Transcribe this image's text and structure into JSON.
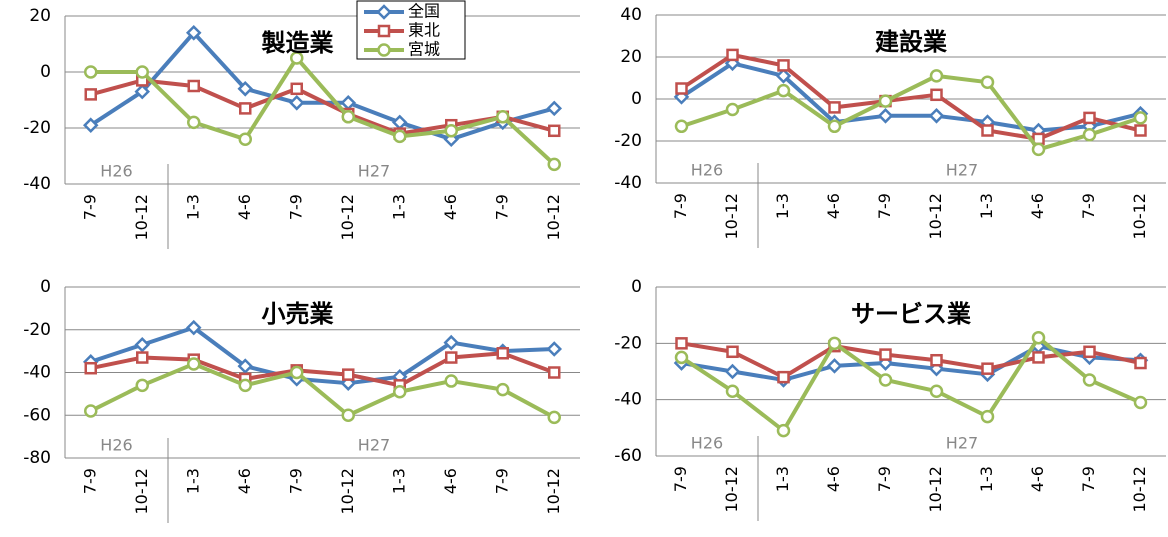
{
  "chart_data": [
    {
      "type": "line",
      "title": "製造業",
      "groups": [
        {
          "name": "H26",
          "categories": [
            "7-9",
            "10-12"
          ]
        },
        {
          "name": "H27",
          "categories": [
            "1-3",
            "4-6",
            "7-9",
            "10-12",
            "1-3",
            "4-6",
            "7-9",
            "10-12"
          ]
        }
      ],
      "ylim": [
        -40,
        20
      ],
      "yticks": [
        -40,
        -20,
        0,
        20
      ],
      "grid": true,
      "series": [
        {
          "name": "全国",
          "color": "#4a7ebb",
          "marker": "diamond",
          "values": [
            -19,
            -7,
            14,
            -6,
            -11,
            -11,
            -18,
            -24,
            -18,
            -13
          ]
        },
        {
          "name": "東北",
          "color": "#c0504d",
          "marker": "square",
          "values": [
            -8,
            -3,
            -5,
            -13,
            -6,
            -15,
            -22,
            -19,
            -16,
            -21
          ]
        },
        {
          "name": "宮城",
          "color": "#9bbb59",
          "marker": "circle",
          "values": [
            0,
            0,
            -18,
            -24,
            5,
            -16,
            -23,
            -21,
            -16,
            -33
          ]
        }
      ]
    },
    {
      "type": "line",
      "title": "建設業",
      "groups": [
        {
          "name": "H26",
          "categories": [
            "7-9",
            "10-12"
          ]
        },
        {
          "name": "H27",
          "categories": [
            "1-3",
            "4-6",
            "7-9",
            "10-12",
            "1-3",
            "4-6",
            "7-9",
            "10-12"
          ]
        }
      ],
      "ylim": [
        -40,
        40
      ],
      "yticks": [
        -40,
        -20,
        0,
        20,
        40
      ],
      "grid": true,
      "series": [
        {
          "values": [
            1,
            17,
            11,
            -11,
            -8,
            -8,
            -11,
            -15,
            -13,
            -7
          ]
        },
        {
          "values": [
            5,
            21,
            16,
            -4,
            -1,
            2,
            -15,
            -19,
            -9,
            -15
          ]
        },
        {
          "values": [
            -13,
            -5,
            4,
            -13,
            -1,
            11,
            8,
            -24,
            -17,
            -9
          ]
        }
      ]
    },
    {
      "type": "line",
      "title": "小売業",
      "groups": [
        {
          "name": "H26",
          "categories": [
            "7-9",
            "10-12"
          ]
        },
        {
          "name": "H27",
          "categories": [
            "1-3",
            "4-6",
            "7-9",
            "10-12",
            "1-3",
            "4-6",
            "7-9",
            "10-12"
          ]
        }
      ],
      "ylim": [
        -80,
        0
      ],
      "yticks": [
        -80,
        -60,
        -40,
        -20,
        0
      ],
      "grid": true,
      "series": [
        {
          "values": [
            -35,
            -27,
            -19,
            -37,
            -43,
            -45,
            -42,
            -26,
            -30,
            -29
          ]
        },
        {
          "values": [
            -38,
            -33,
            -34,
            -43,
            -39,
            -41,
            -46,
            -33,
            -31,
            -40
          ]
        },
        {
          "values": [
            -58,
            -46,
            -36,
            -46,
            -40,
            -60,
            -49,
            -44,
            -48,
            -61
          ]
        }
      ]
    },
    {
      "type": "line",
      "title": "サービス業",
      "groups": [
        {
          "name": "H26",
          "categories": [
            "7-9",
            "10-12"
          ]
        },
        {
          "name": "H27",
          "categories": [
            "1-3",
            "4-6",
            "7-9",
            "10-12",
            "1-3",
            "4-6",
            "7-9",
            "10-12"
          ]
        }
      ],
      "ylim": [
        -60,
        0
      ],
      "yticks": [
        -60,
        -40,
        -20,
        0
      ],
      "grid": true,
      "series": [
        {
          "values": [
            -27,
            -30,
            -33,
            -28,
            -27,
            -29,
            -31,
            -21,
            -25,
            -26
          ]
        },
        {
          "values": [
            -20,
            -23,
            -32,
            -21,
            -24,
            -26,
            -29,
            -25,
            -23,
            -27
          ]
        },
        {
          "values": [
            -25,
            -37,
            -51,
            -20,
            -33,
            -37,
            -46,
            -18,
            -33,
            -41
          ]
        }
      ]
    }
  ]
}
